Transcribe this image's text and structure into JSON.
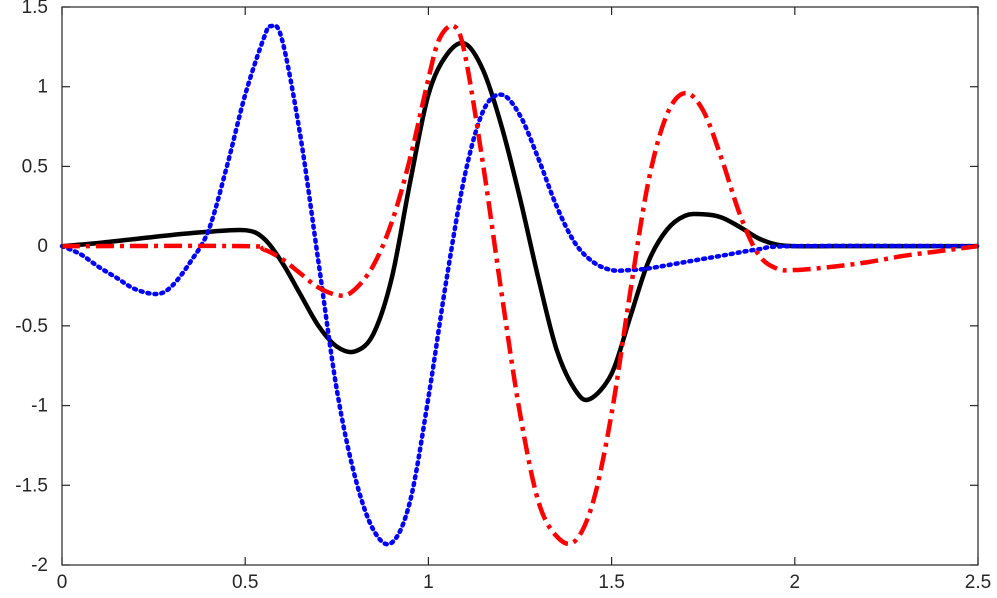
{
  "chart_data": {
    "type": "line",
    "title": "",
    "xlabel": "",
    "ylabel": "",
    "xlim": [
      0,
      2.5
    ],
    "ylim": [
      -2,
      1.5
    ],
    "grid": false,
    "x_ticks": [
      0,
      0.5,
      1,
      1.5,
      2,
      2.5
    ],
    "x_tick_labels": [
      "0",
      "0.5",
      "1",
      "1.5",
      "2",
      "2.5"
    ],
    "y_ticks": [
      -2,
      -1.5,
      -1,
      -0.5,
      0,
      0.5,
      1,
      1.5
    ],
    "y_tick_labels": [
      "-2",
      "-1.5",
      "-1",
      "-0.5",
      "0",
      "0.5",
      "1",
      "1.5"
    ],
    "series": [
      {
        "style": "solid",
        "color": "#000000",
        "x": [
          0,
          0.1,
          0.2,
          0.3,
          0.4,
          0.5,
          0.55,
          0.6,
          0.65,
          0.7,
          0.75,
          0.8,
          0.85,
          0.9,
          0.95,
          1.0,
          1.05,
          1.1,
          1.15,
          1.2,
          1.25,
          1.3,
          1.35,
          1.4,
          1.44,
          1.5,
          1.55,
          1.6,
          1.65,
          1.7,
          1.75,
          1.8,
          1.85,
          1.9,
          1.95,
          2.0,
          2.1,
          2.2,
          2.3,
          2.4,
          2.5
        ],
        "y": [
          0,
          0.02,
          0.045,
          0.07,
          0.09,
          0.1,
          0.05,
          -0.1,
          -0.3,
          -0.5,
          -0.63,
          -0.66,
          -0.55,
          -0.2,
          0.4,
          0.95,
          1.2,
          1.27,
          1.1,
          0.75,
          0.3,
          -0.2,
          -0.65,
          -0.9,
          -0.96,
          -0.8,
          -0.45,
          -0.1,
          0.1,
          0.19,
          0.2,
          0.18,
          0.12,
          0.05,
          0.01,
          0,
          0,
          0,
          0,
          0,
          0
        ]
      },
      {
        "style": "dotted",
        "color": "#0000ff",
        "x": [
          0,
          0.05,
          0.1,
          0.15,
          0.2,
          0.26,
          0.3,
          0.35,
          0.4,
          0.45,
          0.5,
          0.55,
          0.57,
          0.6,
          0.65,
          0.7,
          0.75,
          0.8,
          0.85,
          0.9,
          0.95,
          1.0,
          1.05,
          1.1,
          1.15,
          1.2,
          1.25,
          1.3,
          1.35,
          1.4,
          1.45,
          1.5,
          1.55,
          1.6,
          1.7,
          1.8,
          1.9,
          2.0,
          2.5
        ],
        "y": [
          0,
          -0.05,
          -0.13,
          -0.2,
          -0.27,
          -0.3,
          -0.25,
          -0.1,
          0.1,
          0.5,
          0.95,
          1.3,
          1.38,
          1.3,
          0.7,
          -0.1,
          -0.9,
          -1.45,
          -1.78,
          -1.86,
          -1.6,
          -0.95,
          -0.2,
          0.45,
          0.85,
          0.95,
          0.82,
          0.55,
          0.25,
          0.02,
          -0.1,
          -0.15,
          -0.15,
          -0.14,
          -0.1,
          -0.06,
          -0.02,
          0,
          0
        ]
      },
      {
        "style": "dashdot",
        "color": "#ff0000",
        "x": [
          0,
          0.5,
          0.55,
          0.6,
          0.65,
          0.7,
          0.76,
          0.8,
          0.85,
          0.9,
          0.95,
          1.0,
          1.03,
          1.07,
          1.1,
          1.15,
          1.2,
          1.25,
          1.3,
          1.35,
          1.4,
          1.45,
          1.5,
          1.55,
          1.6,
          1.65,
          1.7,
          1.75,
          1.8,
          1.85,
          1.9,
          1.95,
          2.0,
          2.1,
          2.2,
          2.3,
          2.4,
          2.5
        ],
        "y": [
          0,
          0,
          -0.02,
          -0.08,
          -0.17,
          -0.26,
          -0.31,
          -0.27,
          -0.12,
          0.15,
          0.55,
          1.05,
          1.3,
          1.38,
          1.2,
          0.5,
          -0.3,
          -1.05,
          -1.6,
          -1.82,
          -1.85,
          -1.6,
          -1.05,
          -0.3,
          0.4,
          0.82,
          0.96,
          0.85,
          0.55,
          0.2,
          -0.05,
          -0.14,
          -0.15,
          -0.13,
          -0.1,
          -0.06,
          -0.03,
          0
        ]
      }
    ]
  }
}
